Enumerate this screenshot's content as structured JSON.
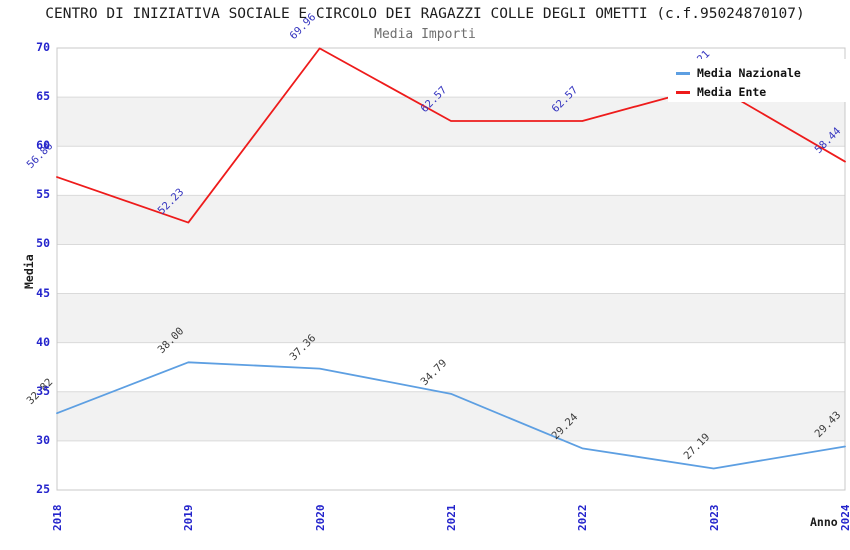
{
  "chart_data": {
    "type": "line",
    "title": "CENTRO DI INIZIATIVA SOCIALE E CIRCOLO DEI RAGAZZI COLLE DEGLI OMETTI (c.f.95024870107)",
    "subtitle": "Media Importi",
    "xlabel": "Anno",
    "ylabel": "Media",
    "categories": [
      "2018",
      "2019",
      "2020",
      "2021",
      "2022",
      "2023",
      "2024"
    ],
    "ylim": [
      25,
      70
    ],
    "ytick_step": 5,
    "grid": "horizontal gridlines with alternating gray bands",
    "legend_position": "top-right inside plot, white box",
    "series": [
      {
        "name": "Media Nazionale",
        "color": "#5d9fe2",
        "label_color": "#3a3a3a",
        "values": [
          32.82,
          38.0,
          37.36,
          34.79,
          29.24,
          27.19,
          29.43
        ],
        "labels": [
          "32.82",
          "38.00",
          "37.36",
          "34.79",
          "29.24",
          "27.19",
          "29.43"
        ]
      },
      {
        "name": "Media Ente",
        "color": "#ee1b1b",
        "label_color": "#3434bf",
        "values": [
          56.86,
          52.23,
          69.96,
          62.57,
          62.57,
          66.21,
          58.44
        ],
        "labels": [
          "56.86",
          "52.23",
          "69.96",
          "62.57",
          "62.57",
          "66.21",
          "58.44"
        ]
      }
    ],
    "notes": {
      "hidden_label": "the 2023 value label of Media Ente is mostly covered by the legend box; value estimated from line position"
    },
    "colors": {
      "band": "#f2f2f2",
      "grid": "#dadada",
      "border": "#c8c8c8",
      "tick_label": "#2424cc",
      "title": "#1c1c1c",
      "subtitle": "#6e6e6e",
      "axis_label": "#1c1c1c",
      "background": "#ffffff",
      "legend_background": "#ffffff",
      "legend_text": "#111111"
    }
  }
}
